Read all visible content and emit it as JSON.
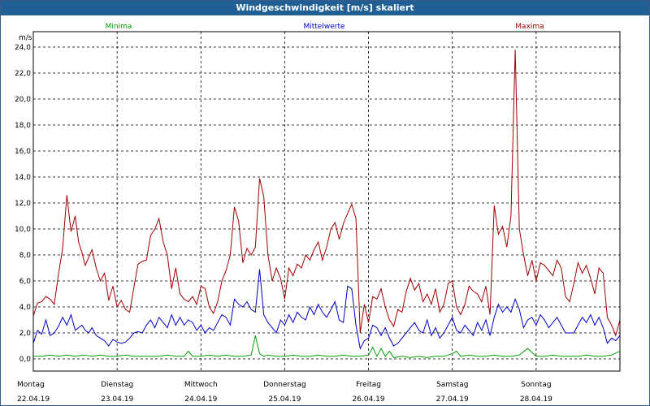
{
  "window": {
    "title": "Windgeschwindigkeit [m/s] skaliert"
  },
  "legend": {
    "minima": "Minima",
    "mittelwerte": "Mittelwerte",
    "maxima": "Maxima"
  },
  "colors": {
    "minima": "#00a000",
    "mittelwerte": "#0000c8",
    "maxima": "#a00000",
    "title_bar": "#1f5f94"
  },
  "chart_data": {
    "type": "line",
    "ylabel": "m/s",
    "ylim": [
      0,
      24
    ],
    "yticks": [
      0,
      2,
      4,
      6,
      8,
      10,
      12,
      14,
      16,
      18,
      20,
      22,
      24
    ],
    "ytick_labels": [
      "0,0",
      "2,0",
      "4,0",
      "6,0",
      "8,0",
      "10,0",
      "12,0",
      "14,0",
      "16,0",
      "18,0",
      "20,0",
      "22,0",
      "24,0"
    ],
    "grid": true,
    "legend_placement": "top",
    "xlim": [
      0,
      7
    ],
    "days": [
      {
        "name": "Montag",
        "date": "22.04.19"
      },
      {
        "name": "Dienstag",
        "date": "23.04.19"
      },
      {
        "name": "Mittwoch",
        "date": "24.04.19"
      },
      {
        "name": "Donnerstag",
        "date": "25.04.19"
      },
      {
        "name": "Freitag",
        "date": "26.04.19"
      },
      {
        "name": "Samstag",
        "date": "27.04.19"
      },
      {
        "name": "Sonntag",
        "date": "28.04.19"
      }
    ],
    "series": [
      {
        "name": "Maxima",
        "color": "#a00000",
        "x": [
          0.0,
          0.05,
          0.1,
          0.15,
          0.2,
          0.25,
          0.3,
          0.35,
          0.4,
          0.45,
          0.5,
          0.54,
          0.58,
          0.62,
          0.66,
          0.7,
          0.75,
          0.8,
          0.85,
          0.9,
          0.95,
          1.0,
          1.05,
          1.1,
          1.15,
          1.2,
          1.25,
          1.3,
          1.35,
          1.4,
          1.45,
          1.5,
          1.55,
          1.6,
          1.65,
          1.7,
          1.75,
          1.8,
          1.85,
          1.9,
          1.95,
          2.0,
          2.05,
          2.1,
          2.15,
          2.2,
          2.25,
          2.3,
          2.35,
          2.4,
          2.45,
          2.5,
          2.55,
          2.6,
          2.65,
          2.7,
          2.75,
          2.8,
          2.85,
          2.9,
          2.95,
          3.0,
          3.05,
          3.1,
          3.15,
          3.2,
          3.25,
          3.3,
          3.35,
          3.4,
          3.45,
          3.5,
          3.55,
          3.6,
          3.65,
          3.7,
          3.75,
          3.8,
          3.85,
          3.9,
          3.95,
          4.0,
          4.05,
          4.1,
          4.15,
          4.2,
          4.25,
          4.3,
          4.35,
          4.4,
          4.45,
          4.5,
          4.55,
          4.6,
          4.65,
          4.7,
          4.75,
          4.8,
          4.85,
          4.9,
          4.95,
          5.0,
          5.05,
          5.1,
          5.15,
          5.2,
          5.25,
          5.3,
          5.35,
          5.4,
          5.45,
          5.5,
          5.55,
          5.6,
          5.65,
          5.7,
          5.75,
          5.8,
          5.85,
          5.9,
          5.95,
          6.0,
          6.05,
          6.1,
          6.15,
          6.2,
          6.25,
          6.3,
          6.35,
          6.4,
          6.45,
          6.5,
          6.55,
          6.6,
          6.65,
          6.7,
          6.75,
          6.8,
          6.85,
          6.9,
          6.95,
          7.0
        ],
        "values": [
          3.3,
          4.3,
          4.4,
          4.8,
          4.6,
          4.2,
          6.5,
          8.5,
          12.6,
          9.8,
          11.0,
          9.0,
          8.2,
          7.2,
          7.8,
          8.4,
          7.0,
          6.0,
          6.6,
          4.5,
          5.6,
          4.0,
          4.5,
          3.8,
          3.6,
          5.5,
          7.3,
          7.5,
          7.6,
          9.5,
          10.0,
          10.8,
          9.0,
          8.0,
          5.4,
          7.0,
          5.0,
          4.6,
          4.4,
          4.8,
          4.2,
          5.6,
          5.4,
          4.0,
          3.5,
          4.4,
          6.0,
          6.8,
          8.0,
          11.7,
          10.6,
          7.4,
          8.5,
          8.0,
          8.6,
          13.9,
          12.5,
          8.0,
          6.0,
          7.0,
          6.2,
          4.6,
          7.0,
          6.4,
          7.3,
          7.0,
          8.0,
          7.6,
          8.4,
          9.0,
          7.6,
          8.6,
          10.0,
          10.5,
          9.2,
          10.4,
          11.2,
          11.9,
          10.8,
          2.0,
          4.2,
          2.8,
          4.8,
          4.6,
          5.4,
          4.0,
          3.0,
          2.5,
          3.8,
          3.6,
          5.2,
          6.2,
          5.3,
          5.8,
          4.4,
          5.0,
          4.2,
          5.4,
          3.6,
          4.2,
          5.8,
          6.0,
          4.0,
          3.4,
          4.2,
          5.6,
          5.2,
          5.0,
          4.4,
          5.6,
          3.4,
          11.8,
          9.6,
          10.2,
          8.6,
          11.0,
          23.8,
          10.0,
          8.0,
          6.4,
          7.6,
          6.0,
          7.4,
          7.2,
          6.8,
          6.4,
          7.6,
          7.0,
          4.8,
          4.4,
          5.8,
          7.4,
          6.6,
          7.2,
          6.2,
          5.0,
          7.0,
          6.6,
          3.2,
          2.6,
          1.8,
          3.0
        ]
      },
      {
        "name": "Mittelwerte",
        "color": "#0000c8",
        "x": [
          0.0,
          0.05,
          0.1,
          0.15,
          0.2,
          0.25,
          0.3,
          0.35,
          0.4,
          0.45,
          0.5,
          0.54,
          0.58,
          0.62,
          0.66,
          0.7,
          0.75,
          0.8,
          0.85,
          0.9,
          0.95,
          1.0,
          1.05,
          1.1,
          1.15,
          1.2,
          1.25,
          1.3,
          1.35,
          1.4,
          1.45,
          1.5,
          1.55,
          1.6,
          1.65,
          1.7,
          1.75,
          1.8,
          1.85,
          1.9,
          1.95,
          2.0,
          2.05,
          2.1,
          2.15,
          2.2,
          2.25,
          2.3,
          2.35,
          2.4,
          2.45,
          2.5,
          2.55,
          2.6,
          2.65,
          2.7,
          2.75,
          2.8,
          2.85,
          2.9,
          2.95,
          3.0,
          3.05,
          3.1,
          3.15,
          3.2,
          3.25,
          3.3,
          3.35,
          3.4,
          3.45,
          3.5,
          3.55,
          3.6,
          3.65,
          3.7,
          3.75,
          3.8,
          3.85,
          3.9,
          3.95,
          4.0,
          4.05,
          4.1,
          4.15,
          4.2,
          4.25,
          4.3,
          4.35,
          4.4,
          4.45,
          4.5,
          4.55,
          4.6,
          4.65,
          4.7,
          4.75,
          4.8,
          4.85,
          4.9,
          4.95,
          5.0,
          5.05,
          5.1,
          5.15,
          5.2,
          5.25,
          5.3,
          5.35,
          5.4,
          5.45,
          5.5,
          5.55,
          5.6,
          5.65,
          5.7,
          5.75,
          5.8,
          5.85,
          5.9,
          5.95,
          6.0,
          6.05,
          6.1,
          6.15,
          6.2,
          6.25,
          6.3,
          6.35,
          6.4,
          6.45,
          6.5,
          6.55,
          6.6,
          6.65,
          6.7,
          6.75,
          6.8,
          6.85,
          6.9,
          6.95,
          7.0
        ],
        "values": [
          1.2,
          2.2,
          1.9,
          3.0,
          1.8,
          2.0,
          2.5,
          3.2,
          2.6,
          3.4,
          2.2,
          2.4,
          2.6,
          2.2,
          2.0,
          2.4,
          1.8,
          1.6,
          1.4,
          1.0,
          1.5,
          1.3,
          1.2,
          1.3,
          1.6,
          2.0,
          2.1,
          2.0,
          2.6,
          3.0,
          2.4,
          3.2,
          2.8,
          2.4,
          3.4,
          2.6,
          3.2,
          2.6,
          3.0,
          2.8,
          2.2,
          2.6,
          2.0,
          2.4,
          2.2,
          2.8,
          3.4,
          3.2,
          2.6,
          4.6,
          4.2,
          4.0,
          4.4,
          3.8,
          3.6,
          6.9,
          3.4,
          2.8,
          2.4,
          2.0,
          3.0,
          2.6,
          3.4,
          2.8,
          3.6,
          3.2,
          3.0,
          4.0,
          3.4,
          4.2,
          3.6,
          3.2,
          3.8,
          4.4,
          3.0,
          2.8,
          5.6,
          5.4,
          2.6,
          0.8,
          1.4,
          1.6,
          2.6,
          2.4,
          1.8,
          2.4,
          1.6,
          1.0,
          1.2,
          1.6,
          2.0,
          2.4,
          2.8,
          2.2,
          2.0,
          3.0,
          1.8,
          2.4,
          1.6,
          2.0,
          2.6,
          3.2,
          2.2,
          2.0,
          2.6,
          2.2,
          1.8,
          2.8,
          2.2,
          3.0,
          1.8,
          3.2,
          4.2,
          3.6,
          4.0,
          3.6,
          4.6,
          3.8,
          2.4,
          3.0,
          3.2,
          2.6,
          3.4,
          3.0,
          2.4,
          2.8,
          3.2,
          2.6,
          2.0,
          2.0,
          2.0,
          2.6,
          3.2,
          2.8,
          3.4,
          2.6,
          3.2,
          2.4,
          1.2,
          1.6,
          1.4,
          1.8
        ]
      },
      {
        "name": "Minima",
        "color": "#00a000",
        "x": [
          0.0,
          0.1,
          0.2,
          0.3,
          0.4,
          0.5,
          0.6,
          0.7,
          0.8,
          0.9,
          1.0,
          1.1,
          1.2,
          1.3,
          1.4,
          1.5,
          1.6,
          1.7,
          1.8,
          1.85,
          1.9,
          2.0,
          2.1,
          2.2,
          2.3,
          2.4,
          2.5,
          2.6,
          2.65,
          2.7,
          2.75,
          2.8,
          2.9,
          3.0,
          3.1,
          3.2,
          3.3,
          3.4,
          3.5,
          3.6,
          3.7,
          3.8,
          3.9,
          4.0,
          4.05,
          4.1,
          4.15,
          4.2,
          4.25,
          4.3,
          4.4,
          4.5,
          4.6,
          4.7,
          4.8,
          4.9,
          5.0,
          5.05,
          5.1,
          5.2,
          5.3,
          5.4,
          5.5,
          5.6,
          5.7,
          5.8,
          5.9,
          6.0,
          6.1,
          6.2,
          6.3,
          6.4,
          6.5,
          6.6,
          6.7,
          6.8,
          6.9,
          7.0
        ],
        "values": [
          0.2,
          0.2,
          0.3,
          0.2,
          0.3,
          0.2,
          0.3,
          0.2,
          0.3,
          0.2,
          0.2,
          0.3,
          0.2,
          0.2,
          0.2,
          0.2,
          0.3,
          0.2,
          0.2,
          0.6,
          0.2,
          0.2,
          0.3,
          0.2,
          0.3,
          0.2,
          0.2,
          0.3,
          1.8,
          0.4,
          0.2,
          0.3,
          0.2,
          0.2,
          0.3,
          0.2,
          0.2,
          0.3,
          0.2,
          0.2,
          0.3,
          0.2,
          0.2,
          0.3,
          0.9,
          0.2,
          0.8,
          0.2,
          0.6,
          0.1,
          0.2,
          0.1,
          0.2,
          0.1,
          0.2,
          0.2,
          0.4,
          0.6,
          0.2,
          0.3,
          0.2,
          0.2,
          0.3,
          0.2,
          0.2,
          0.3,
          0.8,
          0.2,
          0.2,
          0.3,
          0.2,
          0.2,
          0.2,
          0.3,
          0.2,
          0.2,
          0.3,
          0.6
        ]
      }
    ]
  }
}
